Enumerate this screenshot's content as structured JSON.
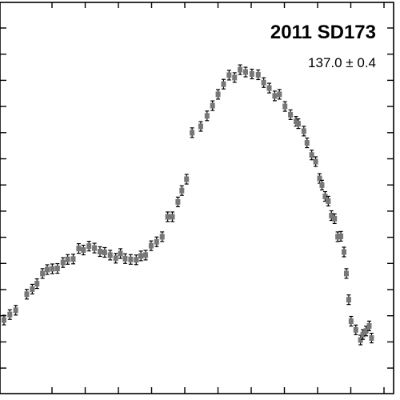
{
  "chart_data": {
    "type": "scatter",
    "title": "2011 SD173",
    "subtitle": "137.0 ± 0.4",
    "xlabel": "",
    "ylabel": "",
    "xlim": [
      0,
      1
    ],
    "ylim": [
      0,
      1
    ],
    "grid": false,
    "error_bars": true,
    "colors": {
      "marker": "#777777",
      "errorbar": "#000000",
      "axis": "#000000"
    },
    "series": [
      {
        "x": [
          0.01,
          0.025,
          0.04,
          0.068,
          0.082,
          0.094,
          0.108,
          0.12,
          0.133,
          0.146,
          0.16,
          0.172,
          0.186,
          0.2,
          0.212,
          0.226,
          0.24,
          0.254,
          0.266,
          0.28,
          0.294,
          0.306,
          0.318,
          0.332,
          0.346,
          0.358,
          0.37,
          0.384,
          0.398,
          0.412,
          0.426,
          0.438,
          0.452,
          0.462,
          0.474,
          0.488,
          0.51,
          0.526,
          0.54,
          0.554,
          0.568,
          0.582,
          0.596,
          0.61,
          0.624,
          0.64,
          0.656,
          0.67,
          0.684,
          0.698,
          0.71,
          0.724,
          0.738,
          0.752,
          0.758,
          0.772,
          0.78,
          0.792,
          0.802,
          0.812,
          0.818,
          0.826,
          0.834,
          0.842,
          0.85,
          0.858,
          0.866,
          0.874,
          0.88,
          0.886,
          0.892,
          0.904,
          0.916,
          0.922,
          0.93,
          0.938,
          0.944
        ],
        "y": [
          0.188,
          0.202,
          0.213,
          0.254,
          0.267,
          0.281,
          0.307,
          0.317,
          0.319,
          0.32,
          0.335,
          0.343,
          0.344,
          0.371,
          0.367,
          0.377,
          0.372,
          0.363,
          0.361,
          0.354,
          0.346,
          0.358,
          0.345,
          0.343,
          0.342,
          0.352,
          0.354,
          0.378,
          0.388,
          0.401,
          0.452,
          0.452,
          0.49,
          0.519,
          0.548,
          0.667,
          0.683,
          0.71,
          0.736,
          0.765,
          0.791,
          0.814,
          0.808,
          0.828,
          0.822,
          0.817,
          0.815,
          0.795,
          0.781,
          0.761,
          0.765,
          0.734,
          0.713,
          0.696,
          0.69,
          0.671,
          0.641,
          0.61,
          0.593,
          0.55,
          0.533,
          0.504,
          0.492,
          0.455,
          0.447,
          0.401,
          0.402,
          0.362,
          0.307,
          0.24,
          0.185,
          0.163,
          0.137,
          0.151,
          0.16,
          0.173,
          0.142
        ]
      }
    ]
  }
}
